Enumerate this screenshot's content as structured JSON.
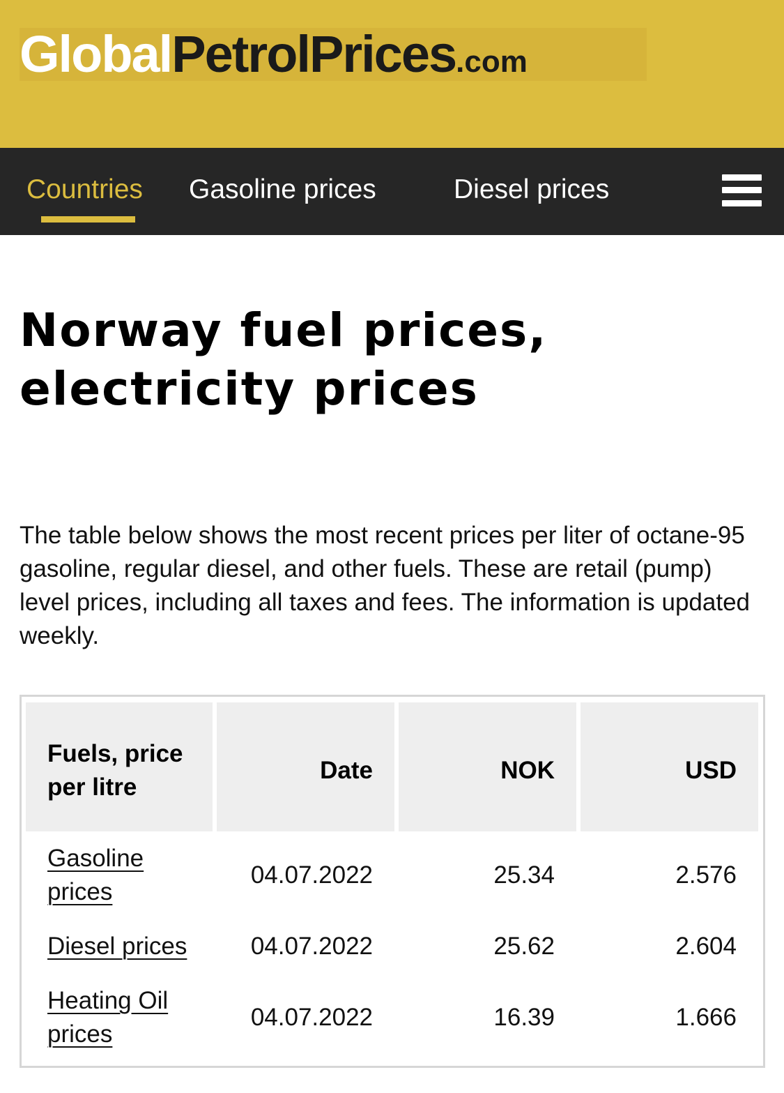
{
  "logo": {
    "part1": "Global",
    "part2": "PetrolPrices",
    "part3": ".com"
  },
  "nav": {
    "items": [
      {
        "label": "Countries",
        "active": true
      },
      {
        "label": "Gasoline prices",
        "active": false
      },
      {
        "label": "Diesel prices",
        "active": false
      }
    ],
    "menu_icon": "hamburger-menu-icon"
  },
  "page": {
    "title_line1": "Norway fuel prices,",
    "title_line2": "electricity prices",
    "intro": "The table below shows the most recent prices per liter of octane-95 gasoline, regular diesel, and other fuels. These are retail (pump) level prices, including all taxes and fees. The information is updated weekly."
  },
  "table": {
    "headers": {
      "fuel_line1": "Fuels, price",
      "fuel_line2": "per litre",
      "date": "Date",
      "nok": "NOK",
      "usd": "USD"
    },
    "rows": [
      {
        "fuel_line1": "Gasoline",
        "fuel_line2": "prices",
        "date": "04.07.2022",
        "nok": "25.34",
        "usd": "2.576"
      },
      {
        "fuel_line1": "Diesel prices",
        "fuel_line2": "",
        "date": "04.07.2022",
        "nok": "25.62",
        "usd": "2.604"
      },
      {
        "fuel_line1": "Heating Oil",
        "fuel_line2": "prices",
        "date": "04.07.2022",
        "nok": "16.39",
        "usd": "1.666"
      }
    ]
  },
  "colors": {
    "brand_yellow": "#dcbd3f",
    "nav_background": "#262626"
  }
}
